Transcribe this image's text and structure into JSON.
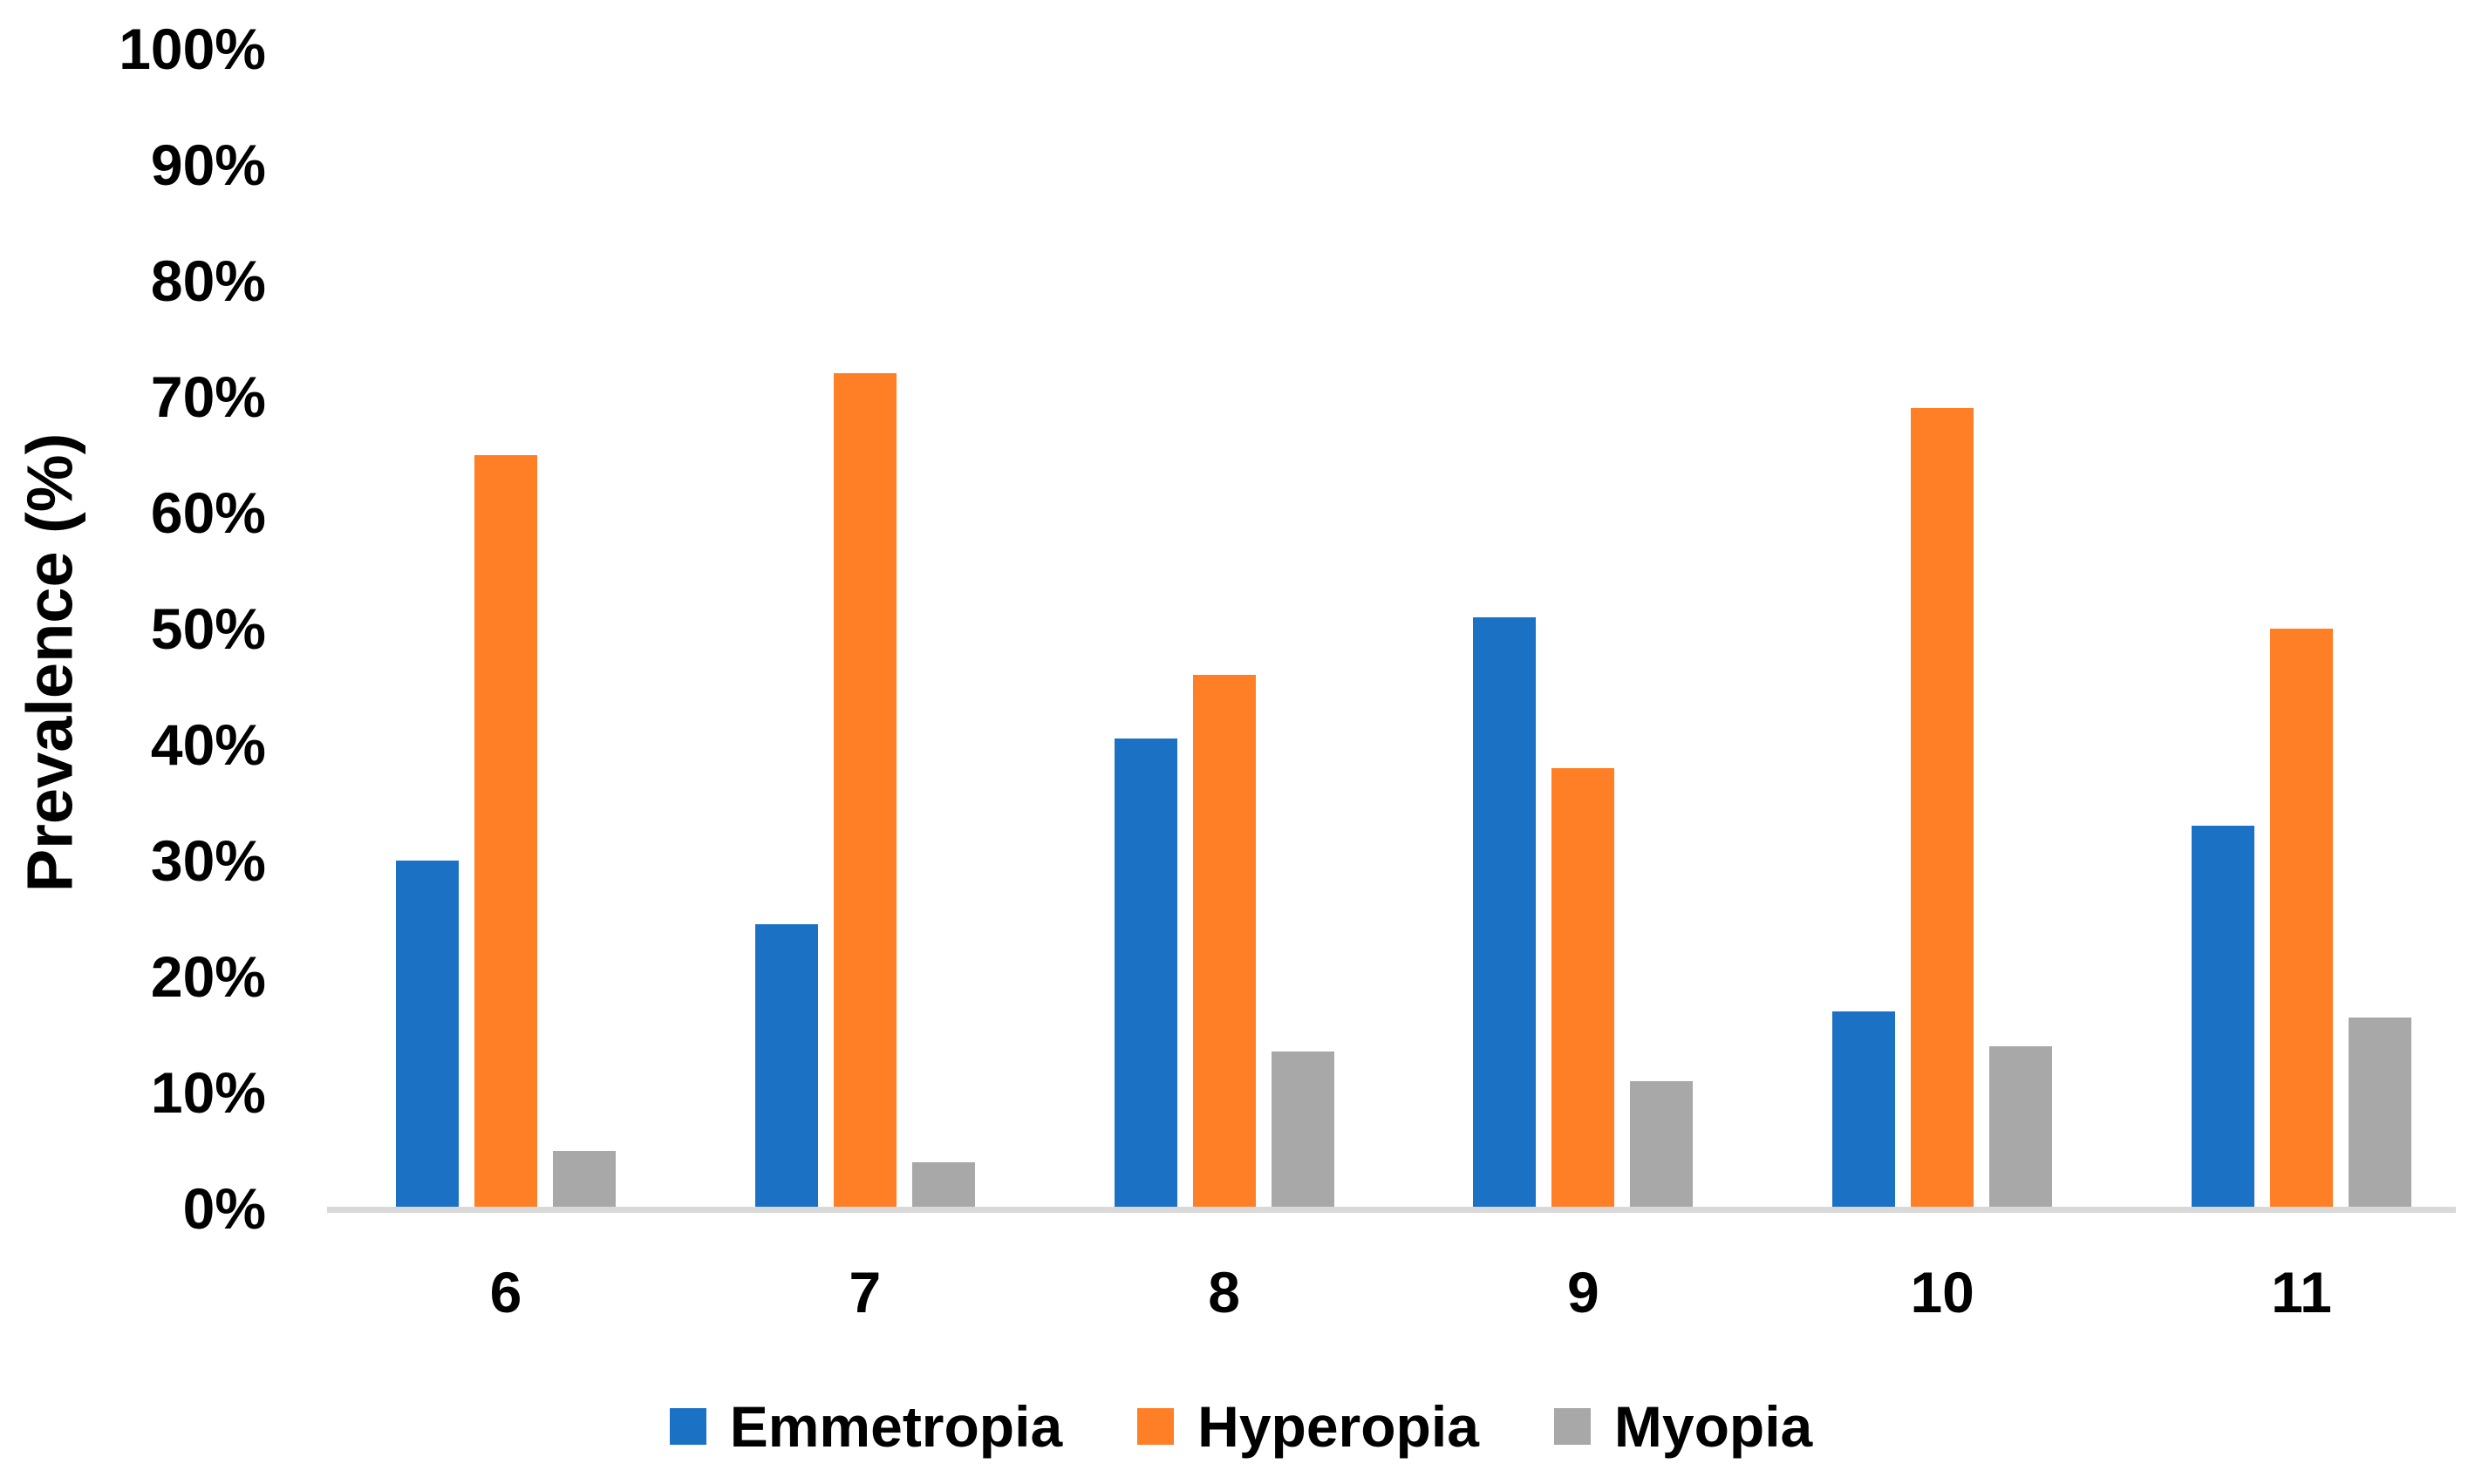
{
  "figure": {
    "background": "#FFFFFF",
    "text_color": "#000000"
  },
  "chart_data": {
    "type": "bar",
    "title": "",
    "xlabel": "",
    "ylabel": "Prevalence (%)",
    "categories": [
      "6",
      "7",
      "8",
      "9",
      "10",
      "11"
    ],
    "series": [
      {
        "name": "Emmetropia",
        "color": "#1B72C4",
        "values": [
          30,
          24.5,
          40.5,
          51,
          17,
          33
        ]
      },
      {
        "name": "Hyperopia",
        "color": "#FF7F27",
        "values": [
          65,
          72,
          46,
          38,
          69,
          50
        ]
      },
      {
        "name": "Myopia",
        "color": "#A8A8A8",
        "values": [
          5,
          4,
          13.5,
          11,
          14,
          16.5
        ]
      }
    ],
    "ylim": [
      0,
      100
    ],
    "ytick_step": 10,
    "ytick_labels": [
      "0%",
      "10%",
      "20%",
      "30%",
      "40%",
      "50%",
      "60%",
      "70%",
      "80%",
      "90%",
      "100%"
    ],
    "grid": false,
    "legend_position": "bottom",
    "axis_line_color": "#D9D9D9"
  }
}
